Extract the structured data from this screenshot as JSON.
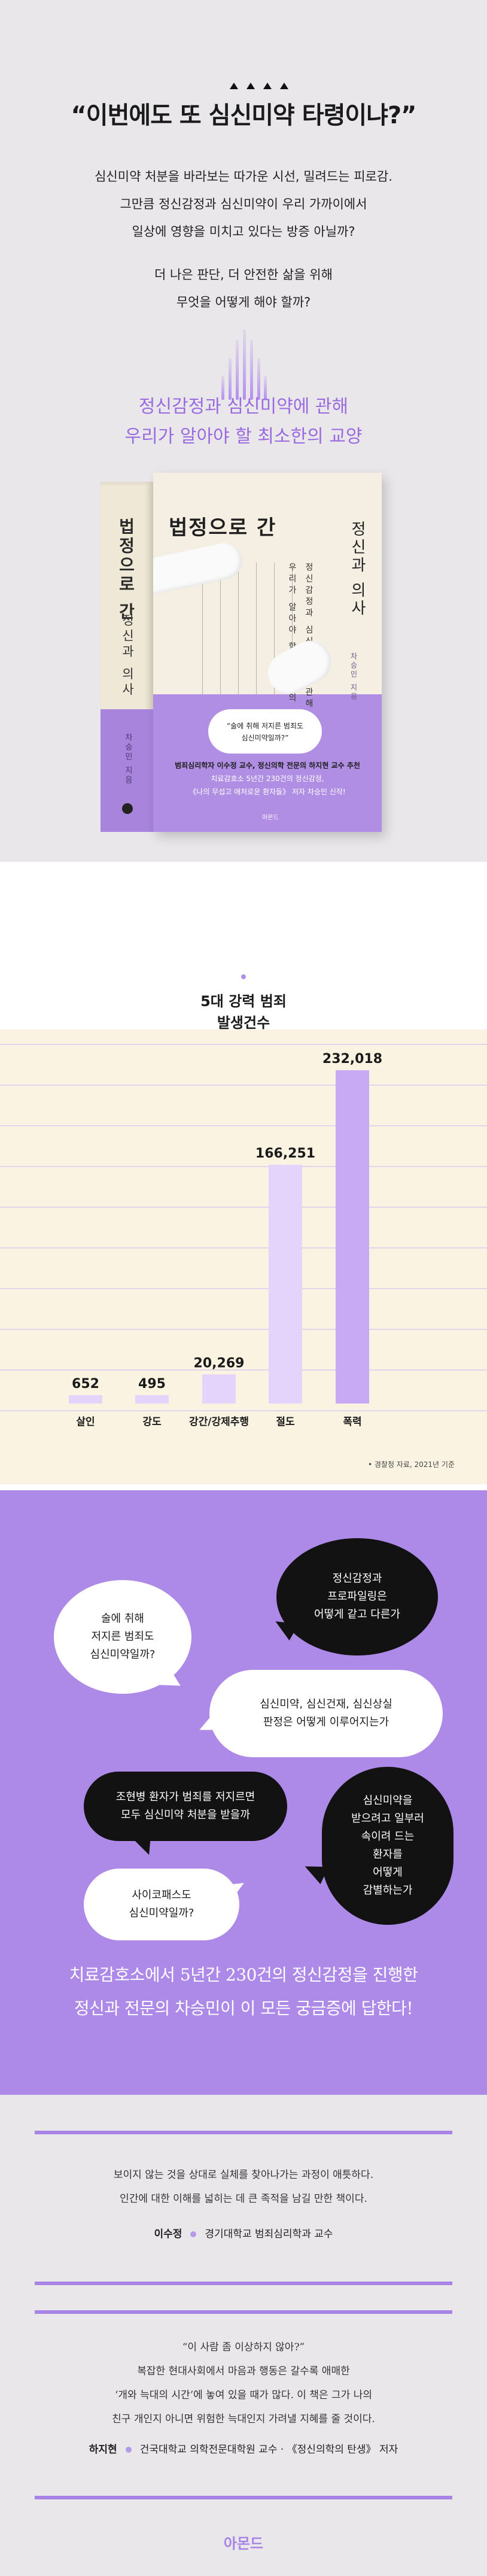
{
  "hero": {
    "headline": "“이번에도 또 심신미약 타령이냐?”",
    "intro_lines": [
      "심신미약 처분을 바라보는 따가운 시선, 밀려드는 피로감.",
      "그만큼 정신감정과 심신미약이 우리 가까이에서",
      "일상에 영향을 미치고 있다는 방증 아닐까?"
    ],
    "question_lines": [
      "더 나은 판단, 더 안전한 삶을 위해",
      "무엇을 어떻게 해야 할까?"
    ],
    "subhead_lines": [
      "정신감정과 심신미약에 관해",
      "우리가 알아야 할 최소한의 교양"
    ]
  },
  "book": {
    "spine_title": "법정으로 간",
    "spine_subtitle": "정신과 의사",
    "spine_author": "차승민 지음",
    "cover_title": "법정으로 간",
    "cover_title2": "정신과 의사",
    "cover_vertical_lines": [
      "정신감정과 심신미약에 관해",
      "우리가 알아야 할 최소한의 교양"
    ],
    "cover_author": "차승민 지음",
    "badge_lines": [
      "“술에 취해 저지른 범죄도",
      "심신미약일까?”"
    ],
    "blurb_strong": "범죄심리학자 이수정 교수, 정신의학 전문의 하지현 교수 추천",
    "blurb_lines": [
      "치료감호소 5년간 230건의 정신감정,",
      "《나의 무섭고 애처로운 환자들》 저자 차승민 신작!"
    ],
    "publisher": "아몬드"
  },
  "chart_data": {
    "type": "bar",
    "title": "5대 강력 범죄\n발생건수",
    "title_lines": [
      "5대 강력 범죄",
      "발생건수"
    ],
    "categories": [
      "살인",
      "강도",
      "강간/강제추행",
      "절도",
      "폭력"
    ],
    "values": [
      652,
      495,
      20269,
      166251,
      232018
    ],
    "value_labels": [
      "652",
      "495",
      "20,269",
      "166,251",
      "232,018"
    ],
    "ylim": [
      0,
      250000
    ],
    "grid": true,
    "colors": {
      "bar": "#e4d4fb",
      "bar_max": "#c7a9f4",
      "grid": "#d6cdf0"
    },
    "source": "• 경찰청 자료, 2021년 기준"
  },
  "bubbles": {
    "b1": [
      "술에 취해",
      "저지른 범죄도",
      "심신미약일까?"
    ],
    "b2": [
      "정신감정과",
      "프로파일링은",
      "어떻게 같고 다른가"
    ],
    "b3": [
      "심신미약, 심신건재, 심신상실",
      "판정은 어떻게 이루어지는가"
    ],
    "b4": [
      "조현병 환자가 범죄를 저지르면",
      "모두 심신미약 처분을 받을까"
    ],
    "b5": [
      "심신미약을",
      "받으려고 일부러",
      "속이려 드는",
      "환자를",
      "어떻게",
      "감별하는가"
    ],
    "b6": [
      "사이코패스도",
      "심신미약일까?"
    ],
    "banner_lines": [
      "치료감호소에서 5년간 230건의 정신감정을 진행한",
      "정신과 전문의 차승민이 이 모든 궁금증에 답한다!"
    ]
  },
  "quotes": [
    {
      "lines": [
        "보이지 않는 것을 상대로 실체를 찾아나가는 과정이 애틋하다.",
        "인간에 대한 이해를 넓히는 데 큰 족적을 남길 만한 책이다."
      ],
      "name": "이수정",
      "affiliation": "경기대학교 범죄심리학과 교수"
    },
    {
      "lines": [
        "“이 사람 좀 이상하지 않아?”",
        "복잡한 현대사회에서 마음과 행동은 갈수록 애매한",
        "‘개와 늑대의 시간’에 놓여 있을 때가 많다. 이 책은 그가 나의",
        "친구 개인지 아니면 위험한 늑대인지 가려낼 지혜를 줄 것이다."
      ],
      "name": "하지현",
      "affiliation": "건국대학교 의학전문대학원 교수 · 《정신의학의 탄생》 저자"
    }
  ],
  "brand": "아몬드"
}
